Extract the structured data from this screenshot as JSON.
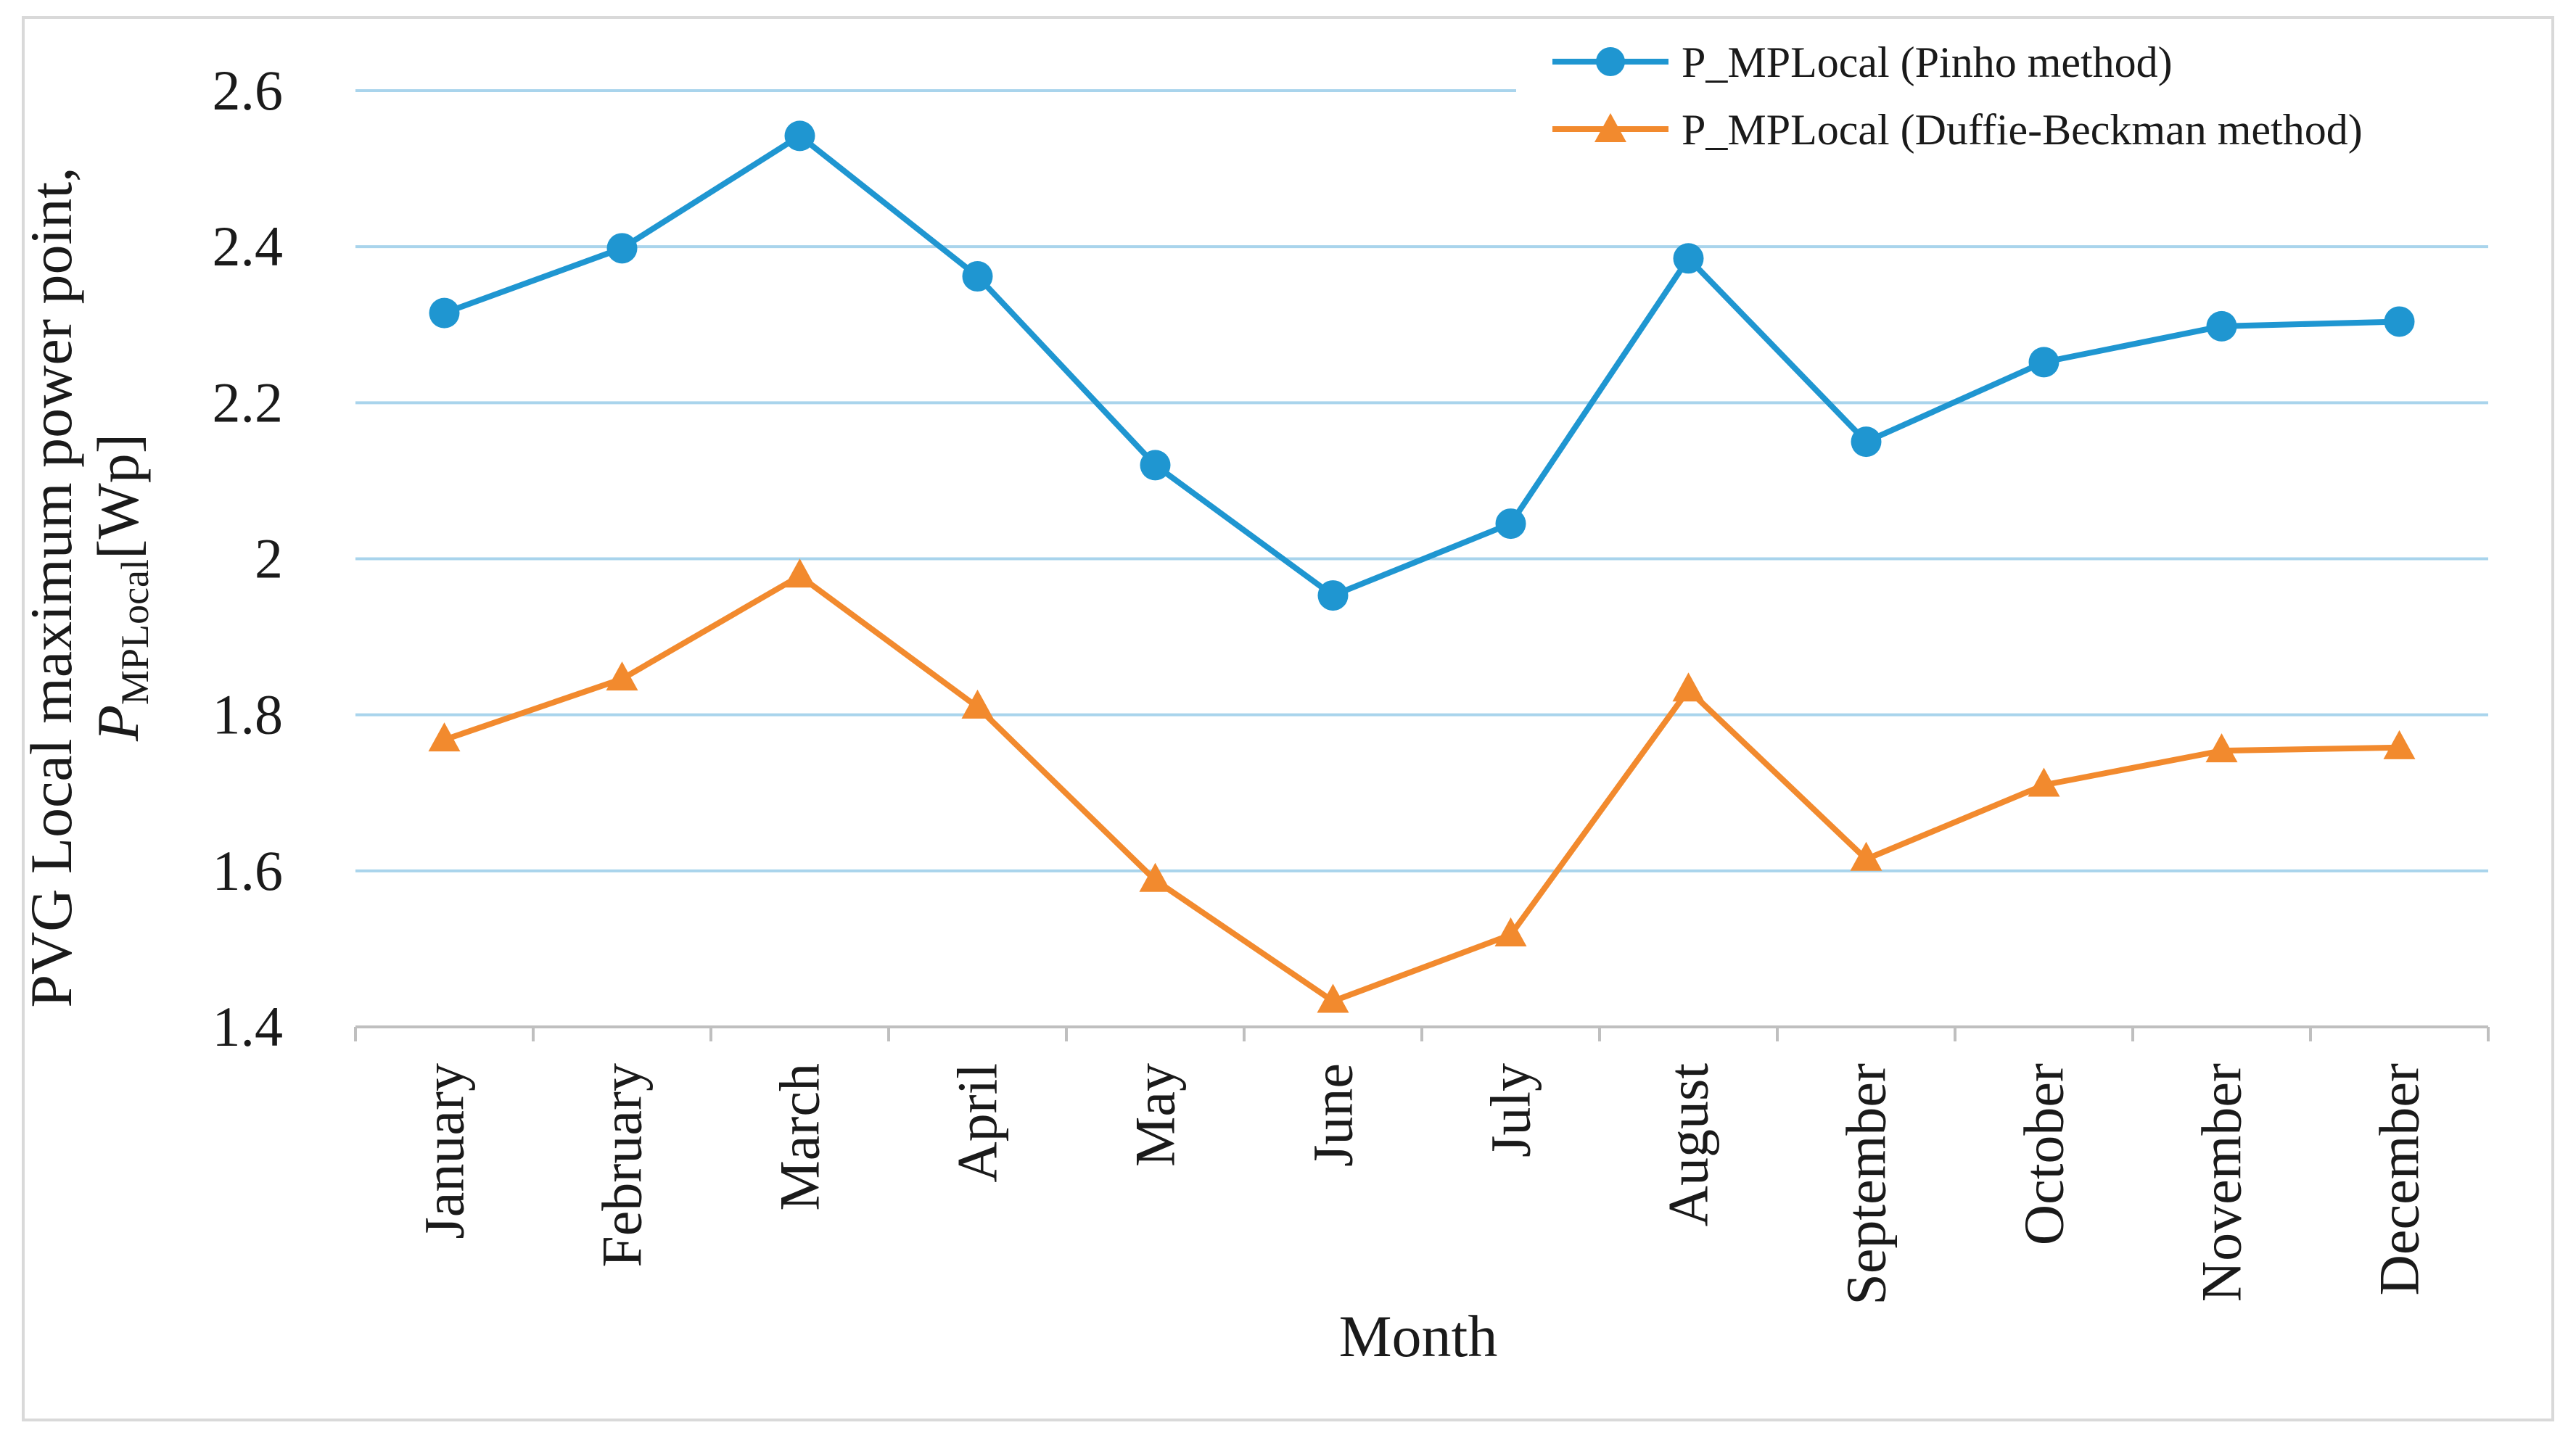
{
  "chart_data": {
    "type": "line",
    "title": "",
    "xlabel": "Month",
    "ylabel": {
      "line1": "PVG Local maximum power point,",
      "symbol": "P",
      "subscript": "MPLocal",
      "unit": "[Wp]"
    },
    "categories": [
      "January",
      "February",
      "March",
      "April",
      "May",
      "June",
      "July",
      "August",
      "September",
      "October",
      "November",
      "December"
    ],
    "ylim": [
      1.4,
      2.6
    ],
    "yticks": [
      1.4,
      1.6,
      1.8,
      2.0,
      2.2,
      2.4,
      2.6
    ],
    "ytick_labels": [
      "1.4",
      "1.6",
      "1.8",
      "2",
      "2.2",
      "2.4",
      "2.6"
    ],
    "grid": true,
    "legend_position": "top-right",
    "series": [
      {
        "name": "P_MPLocal (Pinho method)",
        "marker": "circle",
        "color": "#1f96d1",
        "values": [
          2.315,
          2.398,
          2.542,
          2.362,
          2.12,
          1.953,
          2.045,
          2.385,
          2.15,
          2.252,
          2.298,
          2.304
        ]
      },
      {
        "name": "P_MPLocal (Duffie-Beckman method)",
        "marker": "triangle",
        "color": "#f28a2e",
        "values": [
          1.768,
          1.846,
          1.978,
          1.81,
          1.588,
          1.433,
          1.518,
          1.832,
          1.615,
          1.71,
          1.754,
          1.758
        ]
      }
    ]
  }
}
